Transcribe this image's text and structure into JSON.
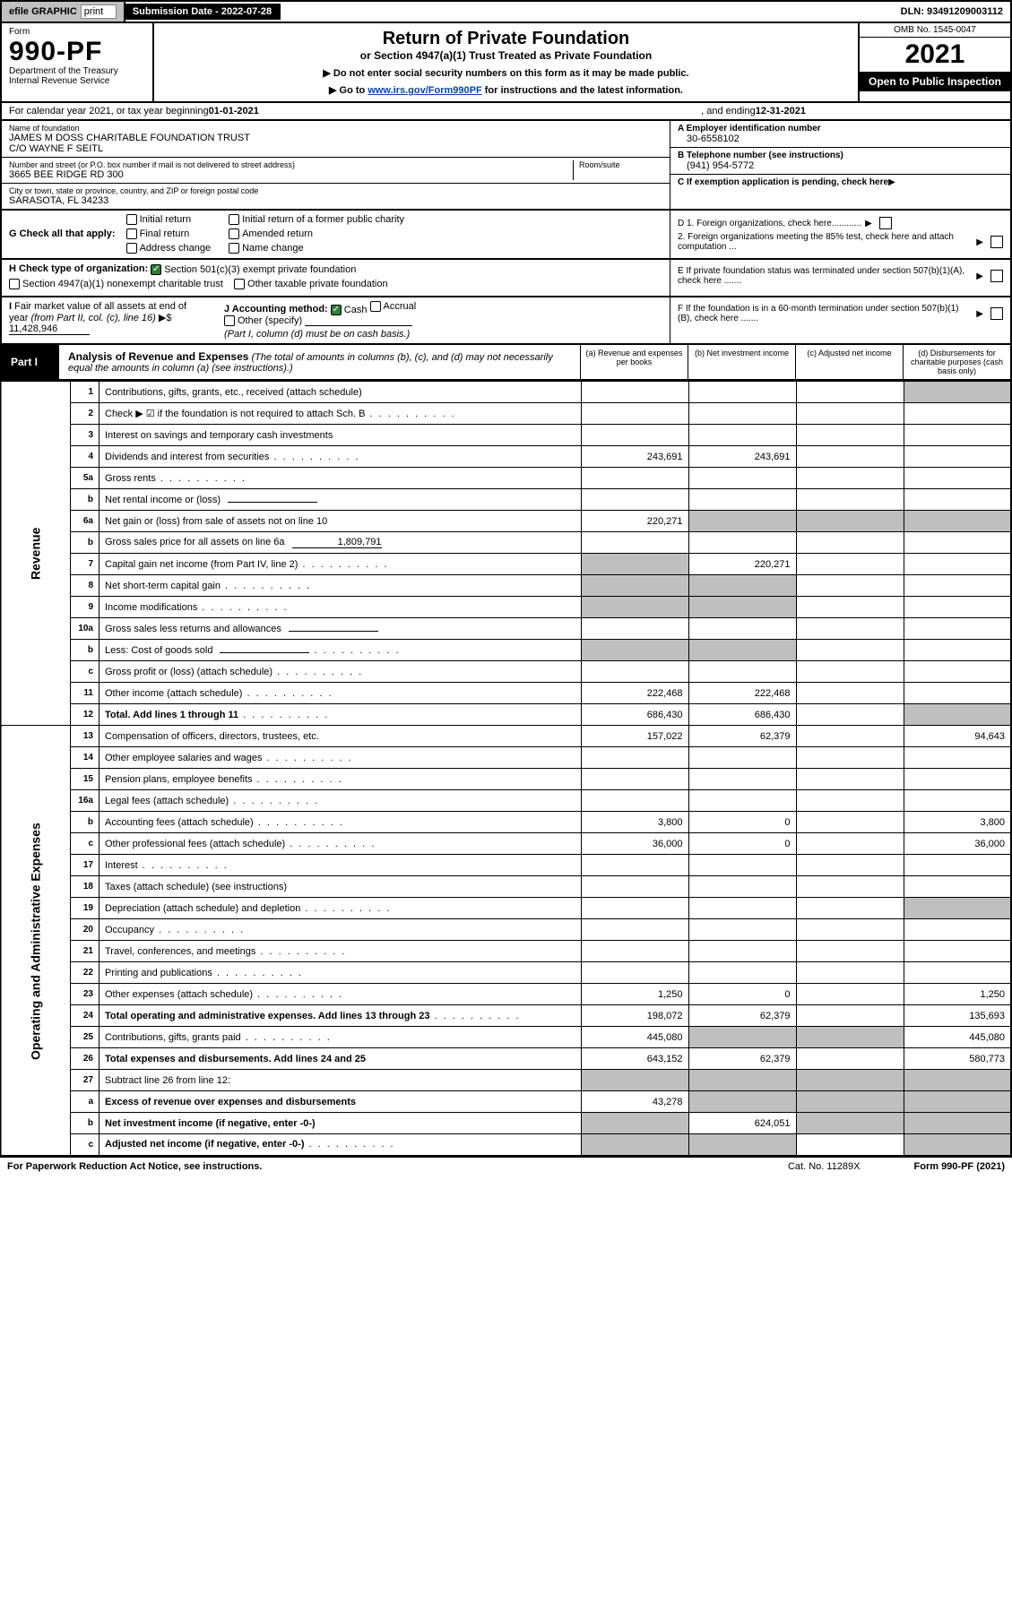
{
  "topbar": {
    "efile_label": "efile GRAPHIC",
    "print_label": "print",
    "submission_label": "Submission Date - ",
    "submission_date": "2022-07-28",
    "dln_label": "DLN: ",
    "dln": "93491209003112"
  },
  "head": {
    "form_word": "Form",
    "form_num": "990-PF",
    "dept1": "Department of the Treasury",
    "dept2": "Internal Revenue Service",
    "title": "Return of Private Foundation",
    "subtitle": "or Section 4947(a)(1) Trust Treated as Private Foundation",
    "note1_prefix": "▶ Do not enter social security numbers on this form as it may be made public.",
    "note2_prefix": "▶ Go to ",
    "note2_link": "www.irs.gov/Form990PF",
    "note2_suffix": " for instructions and the latest information.",
    "omb": "OMB No. 1545-0047",
    "year": "2021",
    "open": "Open to Public Inspection"
  },
  "cal": {
    "text1": "For calendar year 2021, or tax year beginning ",
    "begin": "01-01-2021",
    "text2": ", and ending ",
    "end": "12-31-2021"
  },
  "info": {
    "name_label": "Name of foundation",
    "name1": "JAMES M DOSS CHARITABLE FOUNDATION TRUST",
    "name2": "C/O WAYNE F SEITL",
    "addr_label": "Number and street (or P.O. box number if mail is not delivered to street address)",
    "room_label": "Room/suite",
    "addr": "3665 BEE RIDGE RD 300",
    "city_label": "City or town, state or province, country, and ZIP or foreign postal code",
    "city": "SARASOTA, FL  34233",
    "ein_label": "A Employer identification number",
    "ein": "30-6558102",
    "tel_label": "B Telephone number (see instructions)",
    "tel": "(941) 954-5772",
    "c_label": "C If exemption application is pending, check here"
  },
  "G": {
    "label": "G Check all that apply:",
    "opts": [
      "Initial return",
      "Final return",
      "Address change",
      "Initial return of a former public charity",
      "Amended return",
      "Name change"
    ]
  },
  "H": {
    "label": "H Check type of organization:",
    "opt1": "Section 501(c)(3) exempt private foundation",
    "opt2": "Section 4947(a)(1) nonexempt charitable trust",
    "opt3": "Other taxable private foundation"
  },
  "D": {
    "d1": "D 1. Foreign organizations, check here............",
    "d2": "2. Foreign organizations meeting the 85% test, check here and attach computation ...",
    "e": "E  If private foundation status was terminated under section 507(b)(1)(A), check here .......",
    "f": "F  If the foundation is in a 60-month termination under section 507(b)(1)(B), check here ......."
  },
  "I": {
    "label": "I Fair market value of all assets at end of year (from Part II, col. (c), line 16) ▶$ ",
    "val": "11,428,946",
    "J_label": "J Accounting method:",
    "J_cash": "Cash",
    "J_accrual": "Accrual",
    "J_other": "Other (specify)",
    "J_note": "(Part I, column (d) must be on cash basis.)"
  },
  "part1": {
    "label": "Part I",
    "title": "Analysis of Revenue and Expenses",
    "note": " (The total of amounts in columns (b), (c), and (d) may not necessarily equal the amounts in column (a) (see instructions).)",
    "cols": {
      "a": "(a)  Revenue and expenses per books",
      "b": "(b)  Net investment income",
      "c": "(c)  Adjusted net income",
      "d": "(d)  Disbursements for charitable purposes (cash basis only)"
    }
  },
  "side": {
    "rev": "Revenue",
    "exp": "Operating and Administrative Expenses"
  },
  "rows": [
    {
      "n": "1",
      "t": "Contributions, gifts, grants, etc., received (attach schedule)",
      "a": "",
      "gd": true
    },
    {
      "n": "2",
      "t": "Check ▶ ☑ if the foundation is not required to attach Sch. B",
      "dots": true,
      "span": true
    },
    {
      "n": "3",
      "t": "Interest on savings and temporary cash investments"
    },
    {
      "n": "4",
      "t": "Dividends and interest from securities",
      "dots": true,
      "a": "243,691",
      "b": "243,691"
    },
    {
      "n": "5a",
      "t": "Gross rents",
      "dots": true
    },
    {
      "n": "b",
      "t": "Net rental income or (loss)",
      "inline": true
    },
    {
      "n": "6a",
      "t": "Net gain or (loss) from sale of assets not on line 10",
      "a": "220,271",
      "gb": true,
      "gc": true,
      "gd": true
    },
    {
      "n": "b",
      "t": "Gross sales price for all assets on line 6a",
      "inline": true,
      "ival": "1,809,791",
      "span": true
    },
    {
      "n": "7",
      "t": "Capital gain net income (from Part IV, line 2)",
      "dots": true,
      "b": "220,271",
      "ga": true
    },
    {
      "n": "8",
      "t": "Net short-term capital gain",
      "dots": true,
      "ga": true,
      "gb": true
    },
    {
      "n": "9",
      "t": "Income modifications",
      "dots": true,
      "ga": true,
      "gb": true
    },
    {
      "n": "10a",
      "t": "Gross sales less returns and allowances",
      "inline": true,
      "span": true
    },
    {
      "n": "b",
      "t": "Less: Cost of goods sold",
      "dots": true,
      "inline": true,
      "span": true,
      "ga": true,
      "gb": true
    },
    {
      "n": "c",
      "t": "Gross profit or (loss) (attach schedule)",
      "dots": true
    },
    {
      "n": "11",
      "t": "Other income (attach schedule)",
      "dots": true,
      "a": "222,468",
      "b": "222,468"
    },
    {
      "n": "12",
      "t": "Total. Add lines 1 through 11",
      "dots": true,
      "bold": true,
      "a": "686,430",
      "b": "686,430",
      "gd": true
    }
  ],
  "rows2": [
    {
      "n": "13",
      "t": "Compensation of officers, directors, trustees, etc.",
      "a": "157,022",
      "b": "62,379",
      "d": "94,643"
    },
    {
      "n": "14",
      "t": "Other employee salaries and wages",
      "dots": true
    },
    {
      "n": "15",
      "t": "Pension plans, employee benefits",
      "dots": true
    },
    {
      "n": "16a",
      "t": "Legal fees (attach schedule)",
      "dots": true
    },
    {
      "n": "b",
      "t": "Accounting fees (attach schedule)",
      "dots": true,
      "a": "3,800",
      "b": "0",
      "d": "3,800"
    },
    {
      "n": "c",
      "t": "Other professional fees (attach schedule)",
      "dots": true,
      "a": "36,000",
      "b": "0",
      "d": "36,000"
    },
    {
      "n": "17",
      "t": "Interest",
      "dots": true
    },
    {
      "n": "18",
      "t": "Taxes (attach schedule) (see instructions)"
    },
    {
      "n": "19",
      "t": "Depreciation (attach schedule) and depletion",
      "dots": true,
      "gd": true
    },
    {
      "n": "20",
      "t": "Occupancy",
      "dots": true
    },
    {
      "n": "21",
      "t": "Travel, conferences, and meetings",
      "dots": true
    },
    {
      "n": "22",
      "t": "Printing and publications",
      "dots": true
    },
    {
      "n": "23",
      "t": "Other expenses (attach schedule)",
      "dots": true,
      "a": "1,250",
      "b": "0",
      "d": "1,250"
    },
    {
      "n": "24",
      "t": "Total operating and administrative expenses. Add lines 13 through 23",
      "dots": true,
      "bold": true,
      "a": "198,072",
      "b": "62,379",
      "d": "135,693"
    },
    {
      "n": "25",
      "t": "Contributions, gifts, grants paid",
      "dots": true,
      "a": "445,080",
      "gb": true,
      "gc": true,
      "d": "445,080"
    },
    {
      "n": "26",
      "t": "Total expenses and disbursements. Add lines 24 and 25",
      "bold": true,
      "a": "643,152",
      "b": "62,379",
      "d": "580,773"
    },
    {
      "n": "27",
      "t": "Subtract line 26 from line 12:",
      "ga": true,
      "gb": true,
      "gc": true,
      "gd": true
    },
    {
      "n": "a",
      "t": "Excess of revenue over expenses and disbursements",
      "bold": true,
      "a": "43,278",
      "gb": true,
      "gc": true,
      "gd": true
    },
    {
      "n": "b",
      "t": "Net investment income (if negative, enter -0-)",
      "bold": true,
      "b": "624,051",
      "ga": true,
      "gc": true,
      "gd": true
    },
    {
      "n": "c",
      "t": "Adjusted net income (if negative, enter -0-)",
      "dots": true,
      "bold": true,
      "ga": true,
      "gb": true,
      "gd": true
    }
  ],
  "foot": {
    "left": "For Paperwork Reduction Act Notice, see instructions.",
    "mid": "Cat. No. 11289X",
    "right": "Form 990-PF (2021)"
  }
}
